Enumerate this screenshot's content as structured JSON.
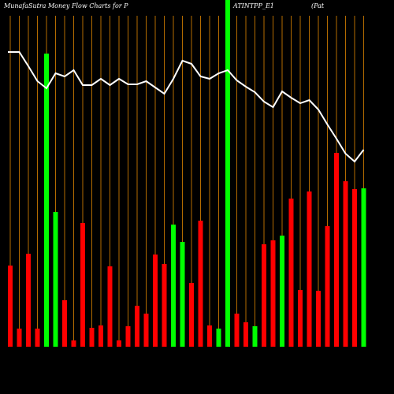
{
  "chart_data": {
    "type": "bar",
    "title_parts": [
      "MunafaSutra  Money Flow  Charts for P",
      "ATINTPP_E1",
      "(Pat"
    ],
    "values": [
      103,
      23,
      118,
      23,
      372,
      171,
      59,
      8,
      157,
      24,
      27,
      102,
      8,
      26,
      52,
      42,
      117,
      105,
      155,
      133,
      81,
      160,
      27,
      23,
      440,
      42,
      31,
      26,
      130,
      135,
      141,
      188,
      72,
      197,
      71,
      153,
      246,
      210,
      200,
      201
    ],
    "colors": [
      "#ff0000",
      "#ff0000",
      "#ff0000",
      "#ff0000",
      "#00ff00",
      "#00ff00",
      "#ff0000",
      "#ff0000",
      "#ff0000",
      "#ff0000",
      "#ff0000",
      "#ff0000",
      "#ff0000",
      "#ff0000",
      "#ff0000",
      "#ff0000",
      "#ff0000",
      "#ff0000",
      "#00ff00",
      "#00ff00",
      "#ff0000",
      "#ff0000",
      "#ff0000",
      "#00ff00",
      "#00ff00",
      "#ff0000",
      "#ff0000",
      "#00ff00",
      "#ff0000",
      "#ff0000",
      "#00ff00",
      "#ff0000",
      "#ff0000",
      "#ff0000",
      "#ff0000",
      "#ff0000",
      "#ff0000",
      "#ff0000",
      "#ff0000",
      "#00ff00"
    ],
    "line_values": [
      374,
      374,
      356,
      337,
      328,
      347,
      343,
      351,
      332,
      332,
      340,
      332,
      340,
      333,
      333,
      337,
      329,
      321,
      340,
      363,
      359,
      343,
      340,
      347,
      351,
      338,
      330,
      323,
      311,
      304,
      324,
      316,
      309,
      313,
      301,
      282,
      264,
      245,
      235,
      250
    ],
    "line_color": "#ffffff",
    "grid_color": "#b36b00",
    "ylim": [
      0,
      440
    ]
  }
}
